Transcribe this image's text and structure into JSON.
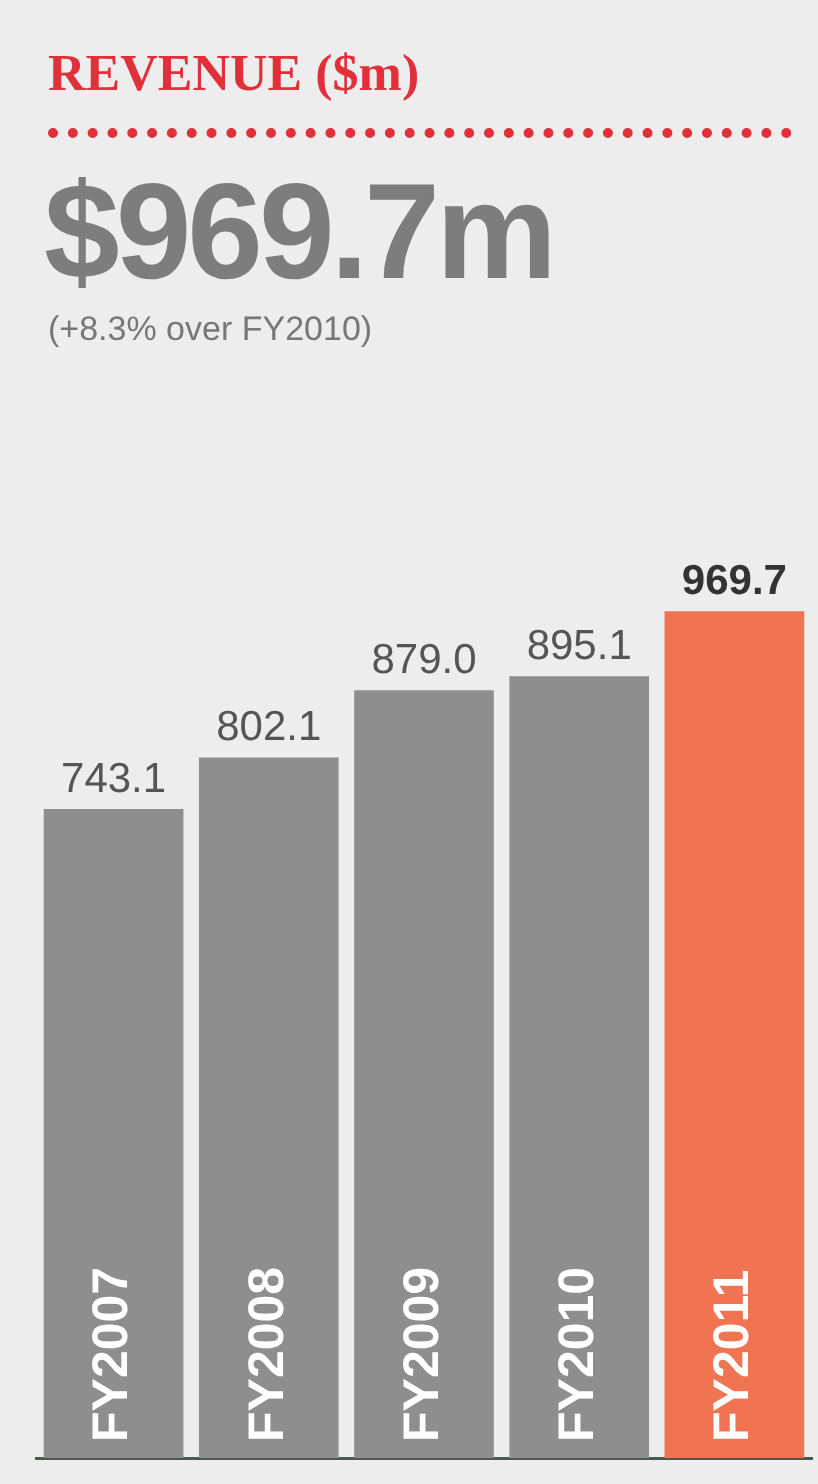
{
  "chart_data": {
    "type": "bar",
    "title": "REVENUE ($m)",
    "subtitle": "$969.7m",
    "annotations": [
      "(+8.3% over FY2010)"
    ],
    "categories": [
      "FY2007",
      "FY2008",
      "FY2009",
      "FY2010",
      "FY2011"
    ],
    "values": [
      743.1,
      802.1,
      879.0,
      895.1,
      969.7
    ],
    "colors": [
      "#8e8e8e",
      "#8e8e8e",
      "#8e8e8e",
      "#8e8e8e",
      "#f07352"
    ],
    "value_labels": [
      "743.1",
      "802.1",
      "879.0",
      "895.1",
      "969.7"
    ],
    "grid": false,
    "legend": false
  }
}
